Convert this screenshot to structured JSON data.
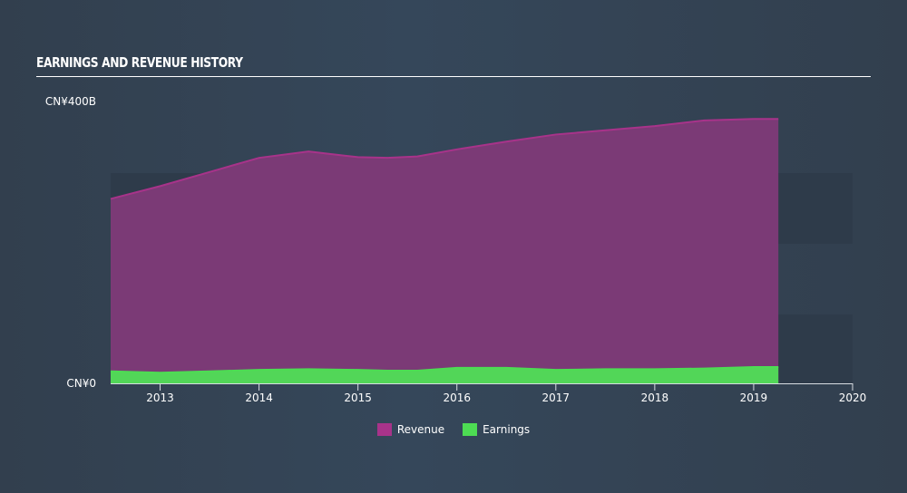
{
  "title": "EARNINGS AND REVENUE HISTORY",
  "chart_data": {
    "type": "area",
    "title": "EARNINGS AND REVENUE HISTORY",
    "xlabel": "",
    "ylabel": "",
    "xlim": [
      2012.5,
      2020
    ],
    "ylim": [
      0,
      400
    ],
    "y_tick_labels": [
      "CN¥0",
      "CN¥400B"
    ],
    "x_ticks": [
      "2013",
      "2014",
      "2015",
      "2016",
      "2017",
      "2018",
      "2019",
      "2020"
    ],
    "x": [
      2012.5,
      2013,
      2013.5,
      2014,
      2014.5,
      2015,
      2015.3,
      2015.6,
      2016,
      2016.5,
      2017,
      2017.5,
      2018,
      2018.5,
      2019,
      2019.25
    ],
    "series": [
      {
        "name": "Revenue",
        "color": "#a8338a",
        "values": [
          261,
          279,
          299,
          319,
          328,
          320,
          319,
          321,
          331,
          342,
          352,
          358,
          364,
          372,
          374,
          374
        ]
      },
      {
        "name": "Earnings",
        "color": "#4ddc53",
        "values": [
          17,
          15,
          17,
          19,
          20,
          19,
          18,
          18,
          22,
          22,
          19,
          20,
          20,
          21,
          23,
          23
        ]
      }
    ],
    "legend_position": "bottom"
  }
}
